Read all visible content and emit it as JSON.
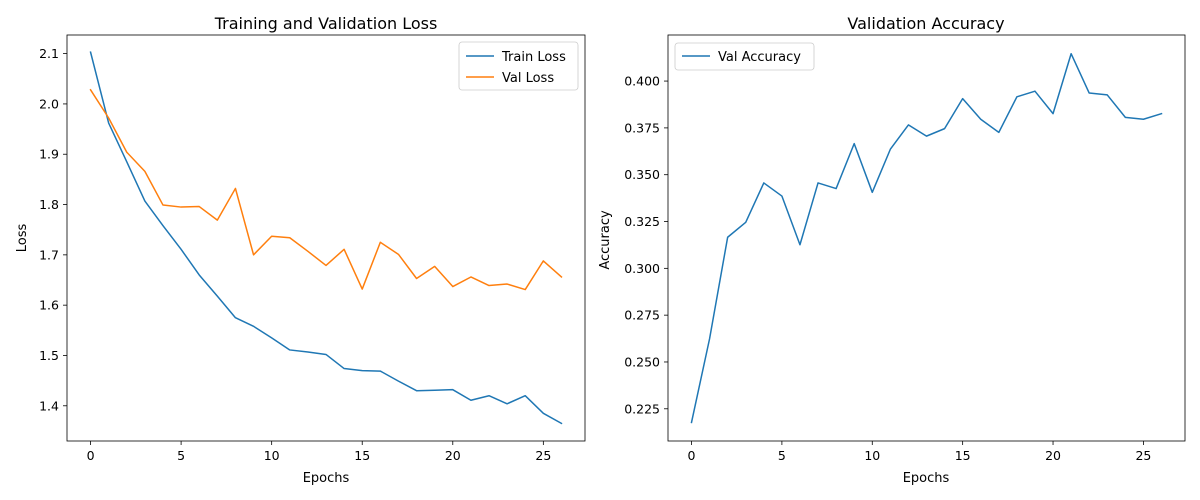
{
  "chart_data": [
    {
      "type": "line",
      "title": "Training and Validation Loss",
      "xlabel": "Epochs",
      "ylabel": "Loss",
      "xlim": [
        -1.3,
        27.3
      ],
      "ylim": [
        1.33,
        2.137
      ],
      "xticks": [
        0,
        5,
        10,
        15,
        20,
        25
      ],
      "yticks": [
        1.4,
        1.5,
        1.6,
        1.7,
        1.8,
        1.9,
        2.0,
        2.1
      ],
      "ytick_labels": [
        "1.4",
        "1.5",
        "1.6",
        "1.7",
        "1.8",
        "1.9",
        "2.0",
        "2.1"
      ],
      "grid": false,
      "legend": "top-right",
      "x": [
        0,
        1,
        2,
        3,
        4,
        5,
        6,
        7,
        8,
        9,
        10,
        11,
        12,
        13,
        14,
        15,
        16,
        17,
        18,
        19,
        20,
        21,
        22,
        23,
        24,
        25,
        26
      ],
      "series": [
        {
          "name": "Train Loss",
          "color": "#1f77b4",
          "values": [
            2.103,
            1.962,
            1.885,
            1.807,
            1.758,
            1.711,
            1.66,
            1.618,
            1.575,
            1.558,
            1.535,
            1.511,
            1.507,
            1.502,
            1.474,
            1.47,
            1.469,
            1.449,
            1.43,
            1.431,
            1.432,
            1.411,
            1.42,
            1.404,
            1.42,
            1.385,
            1.365
          ]
        },
        {
          "name": "Val Loss",
          "color": "#ff7f0e",
          "values": [
            2.028,
            1.972,
            1.904,
            1.866,
            1.799,
            1.795,
            1.796,
            1.769,
            1.832,
            1.7,
            1.737,
            1.734,
            1.707,
            1.679,
            1.711,
            1.632,
            1.725,
            1.701,
            1.653,
            1.677,
            1.637,
            1.656,
            1.639,
            1.642,
            1.631,
            1.688,
            1.656
          ]
        }
      ]
    },
    {
      "type": "line",
      "title": "Validation Accuracy",
      "xlabel": "Epochs",
      "ylabel": "Accuracy",
      "xlim": [
        -1.3,
        27.3
      ],
      "ylim": [
        0.2078,
        0.4246
      ],
      "xticks": [
        0,
        5,
        10,
        15,
        20,
        25
      ],
      "yticks": [
        0.225,
        0.25,
        0.275,
        0.3,
        0.325,
        0.35,
        0.375,
        0.4
      ],
      "ytick_labels": [
        "0.225",
        "0.250",
        "0.275",
        "0.300",
        "0.325",
        "0.350",
        "0.375",
        "0.400"
      ],
      "grid": false,
      "legend": "top-left",
      "x": [
        0,
        1,
        2,
        3,
        4,
        5,
        6,
        7,
        8,
        9,
        10,
        11,
        12,
        13,
        14,
        15,
        16,
        17,
        18,
        19,
        20,
        21,
        22,
        23,
        24,
        25,
        26
      ],
      "series": [
        {
          "name": "Val Accuracy",
          "color": "#1f77b4",
          "values": [
            0.2177,
            0.2624,
            0.3166,
            0.3246,
            0.3456,
            0.3386,
            0.3126,
            0.3456,
            0.3426,
            0.3666,
            0.3406,
            0.3636,
            0.3766,
            0.3706,
            0.3746,
            0.3906,
            0.3796,
            0.3726,
            0.3916,
            0.3946,
            0.3826,
            0.4146,
            0.3936,
            0.3926,
            0.3806,
            0.3796,
            0.3826
          ]
        }
      ]
    }
  ]
}
